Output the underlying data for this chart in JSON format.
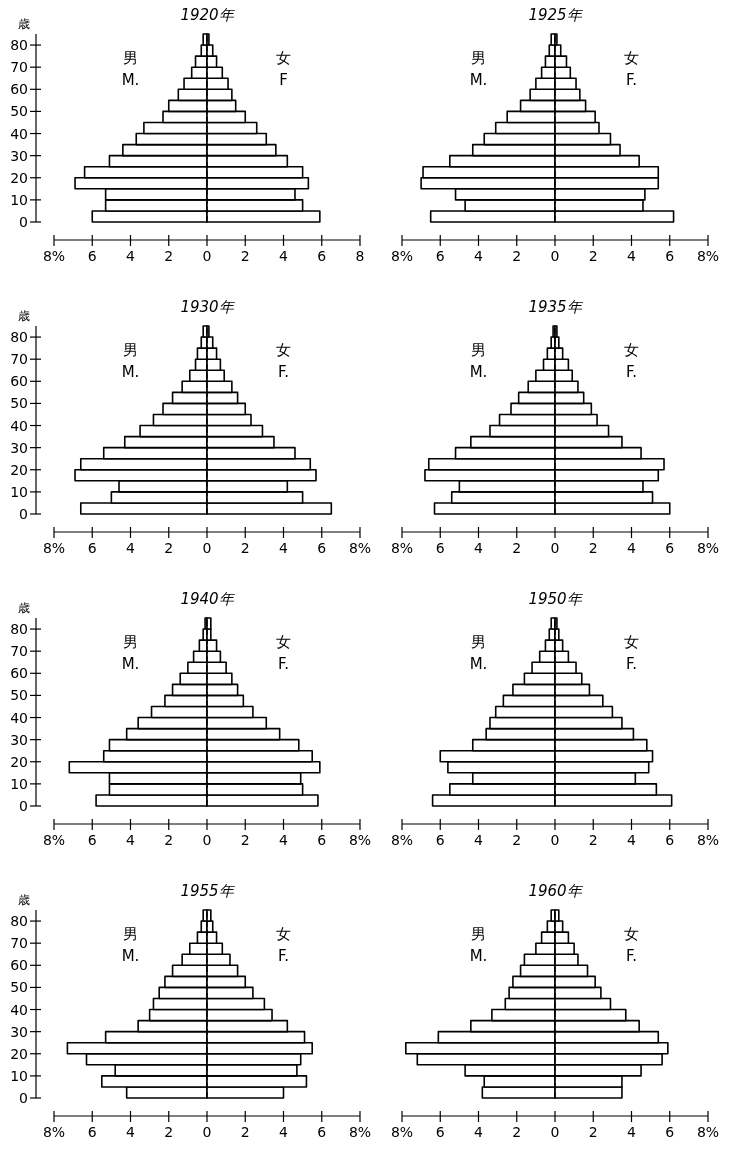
{
  "chart_data": [
    {
      "type": "bar",
      "orientation": "horizontal",
      "stacked": true,
      "title": "1920年",
      "ylabel": "歳",
      "tick_labels": "xy",
      "x": [
        2.5,
        7.5,
        12.5,
        17.5,
        22.5,
        27.5,
        32.5,
        37.5,
        42.5,
        47.5,
        52.5,
        57.5,
        62.5,
        67.5,
        72.5,
        77.5,
        82.5
      ],
      "series": [
        {
          "name": "男\nM.",
          "color": "#000000",
          "values": [
            -6.0,
            -5.3,
            -5.3,
            -6.9,
            -6.4,
            -5.1,
            -4.4,
            -3.7,
            -3.3,
            -2.3,
            -2.0,
            -1.5,
            -1.2,
            -0.8,
            -0.6,
            -0.3,
            -0.2
          ]
        },
        {
          "name": "女\nF",
          "color": "#000000",
          "values": [
            5.9,
            5.0,
            4.6,
            5.3,
            5.0,
            4.2,
            3.6,
            3.1,
            2.6,
            2.0,
            1.5,
            1.3,
            1.1,
            0.8,
            0.5,
            0.3,
            0.1
          ]
        }
      ],
      "xlim": [
        -8,
        8
      ],
      "xticks": [
        {
          "value": -8,
          "label": "8%"
        },
        {
          "value": -6,
          "label": "6"
        },
        {
          "value": -4,
          "label": "4"
        },
        {
          "value": -2,
          "label": "2"
        },
        0,
        2,
        4,
        6,
        8
      ],
      "ylim": [
        0,
        85
      ],
      "yticks": [
        0,
        10,
        20,
        30,
        40,
        50,
        60,
        70,
        80
      ],
      "ref_lines": [
        {
          "axis": "x",
          "value": 0,
          "line_style": "dashed"
        }
      ]
    },
    {
      "type": "bar",
      "orientation": "horizontal",
      "stacked": true,
      "title": "1925年",
      "tick_labels": "x",
      "x": [
        2.5,
        7.5,
        12.5,
        17.5,
        22.5,
        27.5,
        32.5,
        37.5,
        42.5,
        47.5,
        52.5,
        57.5,
        62.5,
        67.5,
        72.5,
        77.5,
        82.5
      ],
      "series": [
        {
          "name": "男\nM.",
          "color": "#000000",
          "values": [
            -6.5,
            -4.7,
            -5.2,
            -7.0,
            -6.9,
            -5.5,
            -4.3,
            -3.7,
            -3.1,
            -2.5,
            -1.8,
            -1.3,
            -1.0,
            -0.7,
            -0.5,
            -0.3,
            -0.2
          ]
        },
        {
          "name": "女\nF.",
          "color": "#000000",
          "values": [
            6.2,
            4.6,
            4.7,
            5.4,
            5.4,
            4.4,
            3.4,
            2.9,
            2.3,
            2.1,
            1.6,
            1.3,
            1.1,
            0.8,
            0.6,
            0.3,
            0.1
          ]
        }
      ],
      "xlim": [
        -8,
        8
      ],
      "xticks": [
        {
          "value": -8,
          "label": "8%"
        },
        {
          "value": -6,
          "label": "6"
        },
        {
          "value": -4,
          "label": "4"
        },
        {
          "value": -2,
          "label": "2"
        },
        0,
        2,
        4,
        6,
        {
          "value": 8,
          "label": "8%"
        }
      ],
      "ylim": [
        0,
        85
      ],
      "ref_lines": [
        {
          "axis": "x",
          "value": 0,
          "line_style": "dashed"
        }
      ]
    },
    {
      "type": "bar",
      "orientation": "horizontal",
      "stacked": true,
      "title": "1930年",
      "ylabel": "歳",
      "tick_labels": "xy",
      "x": [
        2.5,
        7.5,
        12.5,
        17.5,
        22.5,
        27.5,
        32.5,
        37.5,
        42.5,
        47.5,
        52.5,
        57.5,
        62.5,
        67.5,
        72.5,
        77.5,
        82.5
      ],
      "series": [
        {
          "name": "男\nM.",
          "color": "#000000",
          "values": [
            -6.6,
            -5.0,
            -4.6,
            -6.9,
            -6.6,
            -5.4,
            -4.3,
            -3.5,
            -2.8,
            -2.3,
            -1.8,
            -1.3,
            -0.9,
            -0.6,
            -0.5,
            -0.3,
            -0.2
          ]
        },
        {
          "name": "女\nF.",
          "color": "#000000",
          "values": [
            6.5,
            5.0,
            4.2,
            5.7,
            5.4,
            4.6,
            3.5,
            2.9,
            2.3,
            2.0,
            1.6,
            1.3,
            0.9,
            0.7,
            0.5,
            0.3,
            0.1
          ]
        }
      ],
      "xlim": [
        -8,
        8
      ],
      "xticks": [
        {
          "value": -8,
          "label": "8%"
        },
        {
          "value": -6,
          "label": "6"
        },
        {
          "value": -4,
          "label": "4"
        },
        {
          "value": -2,
          "label": "2"
        },
        0,
        2,
        4,
        6,
        {
          "value": 8,
          "label": "8%"
        }
      ],
      "ylim": [
        0,
        85
      ],
      "yticks": [
        0,
        10,
        20,
        30,
        40,
        50,
        60,
        70,
        80
      ],
      "ref_lines": [
        {
          "axis": "x",
          "value": 0,
          "line_style": "dashed"
        }
      ]
    },
    {
      "type": "bar",
      "orientation": "horizontal",
      "stacked": true,
      "title": "1935年",
      "tick_labels": "x",
      "x": [
        2.5,
        7.5,
        12.5,
        17.5,
        22.5,
        27.5,
        32.5,
        37.5,
        42.5,
        47.5,
        52.5,
        57.5,
        62.5,
        67.5,
        72.5,
        77.5,
        82.5
      ],
      "series": [
        {
          "name": "男\nM.",
          "color": "#000000",
          "values": [
            -6.3,
            -5.4,
            -5.0,
            -6.8,
            -6.6,
            -5.2,
            -4.4,
            -3.4,
            -2.9,
            -2.3,
            -1.9,
            -1.4,
            -1.0,
            -0.6,
            -0.4,
            -0.2,
            -0.1
          ]
        },
        {
          "name": "女\nF.",
          "color": "#000000",
          "values": [
            6.0,
            5.1,
            4.6,
            5.4,
            5.7,
            4.5,
            3.5,
            2.8,
            2.2,
            1.9,
            1.5,
            1.2,
            0.9,
            0.7,
            0.4,
            0.2,
            0.1
          ]
        }
      ],
      "xlim": [
        -8,
        8
      ],
      "xticks": [
        {
          "value": -8,
          "label": "8%"
        },
        {
          "value": -6,
          "label": "6"
        },
        {
          "value": -4,
          "label": "4"
        },
        {
          "value": -2,
          "label": "2"
        },
        0,
        2,
        4,
        6,
        {
          "value": 8,
          "label": "8%"
        }
      ],
      "ylim": [
        0,
        85
      ],
      "ref_lines": [
        {
          "axis": "x",
          "value": 0,
          "line_style": "dashed"
        }
      ]
    },
    {
      "type": "bar",
      "orientation": "horizontal",
      "stacked": true,
      "title": "1940年",
      "ylabel": "歳",
      "tick_labels": "xy",
      "x": [
        2.5,
        7.5,
        12.5,
        17.5,
        22.5,
        27.5,
        32.5,
        37.5,
        42.5,
        47.5,
        52.5,
        57.5,
        62.5,
        67.5,
        72.5,
        77.5,
        82.5
      ],
      "series": [
        {
          "name": "男\nM.",
          "color": "#000000",
          "values": [
            -5.8,
            -5.1,
            -5.1,
            -7.2,
            -5.4,
            -5.1,
            -4.2,
            -3.6,
            -2.9,
            -2.2,
            -1.8,
            -1.4,
            -1.0,
            -0.7,
            -0.4,
            -0.2,
            -0.1
          ]
        },
        {
          "name": "女\nF.",
          "color": "#000000",
          "values": [
            5.8,
            5.0,
            4.9,
            5.9,
            5.5,
            4.8,
            3.8,
            3.1,
            2.4,
            1.9,
            1.6,
            1.3,
            1.0,
            0.7,
            0.5,
            0.2,
            0.2
          ]
        }
      ],
      "xlim": [
        -8,
        8
      ],
      "xticks": [
        {
          "value": -8,
          "label": "8%"
        },
        {
          "value": -6,
          "label": "6"
        },
        {
          "value": -4,
          "label": "4"
        },
        {
          "value": -2,
          "label": "2"
        },
        0,
        2,
        4,
        6,
        {
          "value": 8,
          "label": "8%"
        }
      ],
      "ylim": [
        0,
        85
      ],
      "yticks": [
        0,
        10,
        20,
        30,
        40,
        50,
        60,
        70,
        80
      ],
      "ref_lines": [
        {
          "axis": "x",
          "value": 0,
          "line_style": "dashed"
        }
      ]
    },
    {
      "type": "bar",
      "orientation": "horizontal",
      "stacked": true,
      "title": "1950年",
      "tick_labels": "x",
      "x": [
        2.5,
        7.5,
        12.5,
        17.5,
        22.5,
        27.5,
        32.5,
        37.5,
        42.5,
        47.5,
        52.5,
        57.5,
        62.5,
        67.5,
        72.5,
        77.5,
        82.5
      ],
      "series": [
        {
          "name": "男\nM.",
          "color": "#000000",
          "values": [
            -6.4,
            -5.5,
            -4.3,
            -5.6,
            -6.0,
            -4.3,
            -3.6,
            -3.4,
            -3.1,
            -2.7,
            -2.2,
            -1.6,
            -1.2,
            -0.8,
            -0.5,
            -0.3,
            -0.2
          ]
        },
        {
          "name": "女\nF.",
          "color": "#000000",
          "values": [
            6.1,
            5.3,
            4.2,
            4.9,
            5.1,
            4.8,
            4.1,
            3.5,
            3.0,
            2.5,
            1.8,
            1.4,
            1.1,
            0.7,
            0.4,
            0.2,
            0.1
          ]
        }
      ],
      "xlim": [
        -8,
        8
      ],
      "xticks": [
        {
          "value": -8,
          "label": "8%"
        },
        {
          "value": -6,
          "label": "6"
        },
        {
          "value": -4,
          "label": "4"
        },
        {
          "value": -2,
          "label": "2"
        },
        0,
        2,
        4,
        6,
        {
          "value": 8,
          "label": "8%"
        }
      ],
      "ylim": [
        0,
        85
      ],
      "ref_lines": [
        {
          "axis": "x",
          "value": 0,
          "line_style": "dashed"
        }
      ]
    },
    {
      "type": "bar",
      "orientation": "horizontal",
      "stacked": true,
      "title": "1955年",
      "ylabel": "歳",
      "tick_labels": "xy",
      "x": [
        2.5,
        7.5,
        12.5,
        17.5,
        22.5,
        27.5,
        32.5,
        37.5,
        42.5,
        47.5,
        52.5,
        57.5,
        62.5,
        67.5,
        72.5,
        77.5,
        82.5
      ],
      "series": [
        {
          "name": "男\nM.",
          "color": "#000000",
          "values": [
            -4.2,
            -5.5,
            -4.8,
            -6.3,
            -7.3,
            -5.3,
            -3.6,
            -3.0,
            -2.8,
            -2.5,
            -2.2,
            -1.8,
            -1.3,
            -0.9,
            -0.5,
            -0.3,
            -0.2
          ]
        },
        {
          "name": "女\nF.",
          "color": "#000000",
          "values": [
            4.0,
            5.2,
            4.7,
            4.9,
            5.5,
            5.1,
            4.2,
            3.4,
            3.0,
            2.4,
            2.0,
            1.6,
            1.2,
            0.8,
            0.5,
            0.3,
            0.2
          ]
        }
      ],
      "xlim": [
        -8,
        8
      ],
      "xticks": [
        {
          "value": -8,
          "label": "8%"
        },
        {
          "value": -6,
          "label": "6"
        },
        {
          "value": -4,
          "label": "4"
        },
        {
          "value": -2,
          "label": "2"
        },
        0,
        2,
        4,
        6,
        {
          "value": 8,
          "label": "8%"
        }
      ],
      "ylim": [
        0,
        85
      ],
      "yticks": [
        0,
        10,
        20,
        30,
        40,
        50,
        60,
        70,
        80
      ],
      "ref_lines": [
        {
          "axis": "x",
          "value": 0,
          "line_style": "dashed"
        }
      ]
    },
    {
      "type": "bar",
      "orientation": "horizontal",
      "stacked": true,
      "title": "1960年",
      "tick_labels": "x",
      "x": [
        2.5,
        7.5,
        12.5,
        17.5,
        22.5,
        27.5,
        32.5,
        37.5,
        42.5,
        47.5,
        52.5,
        57.5,
        62.5,
        67.5,
        72.5,
        77.5,
        82.5
      ],
      "series": [
        {
          "name": "男\nM.",
          "color": "#000000",
          "values": [
            -3.8,
            -3.7,
            -4.7,
            -7.2,
            -7.8,
            -6.1,
            -4.4,
            -3.3,
            -2.6,
            -2.4,
            -2.2,
            -1.8,
            -1.6,
            -1.0,
            -0.7,
            -0.4,
            -0.2
          ]
        },
        {
          "name": "女\nF.",
          "color": "#000000",
          "values": [
            3.5,
            3.5,
            4.5,
            5.6,
            5.9,
            5.4,
            4.4,
            3.7,
            2.9,
            2.4,
            2.1,
            1.7,
            1.2,
            1.0,
            0.7,
            0.4,
            0.2
          ]
        }
      ],
      "xlim": [
        -8,
        8
      ],
      "xticks": [
        {
          "value": -8,
          "label": "8%"
        },
        {
          "value": -6,
          "label": "6"
        },
        {
          "value": -4,
          "label": "4"
        },
        {
          "value": -2,
          "label": "2"
        },
        0,
        2,
        4,
        6,
        {
          "value": 8,
          "label": "8%"
        }
      ],
      "ylim": [
        0,
        85
      ],
      "ref_lines": [
        {
          "axis": "x",
          "value": 0,
          "line_style": "dashed"
        }
      ]
    }
  ]
}
